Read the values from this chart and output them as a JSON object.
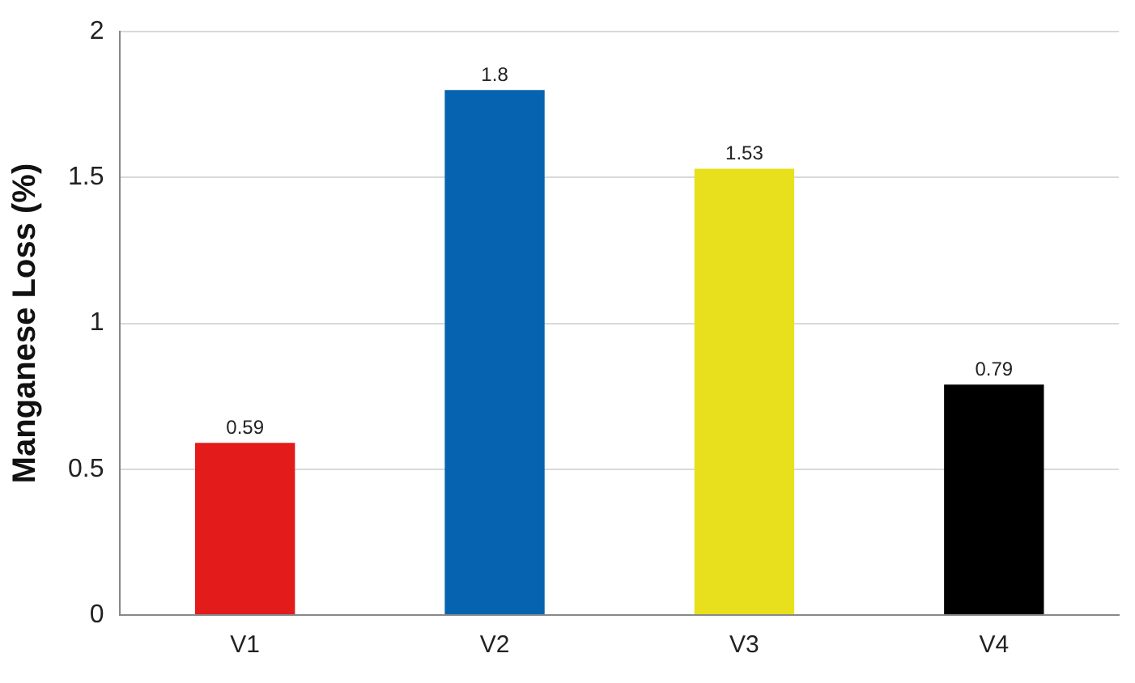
{
  "chart_data": {
    "type": "bar",
    "ylabel": "Manganese Loss (%)",
    "categories": [
      "V1",
      "V2",
      "V3",
      "V4"
    ],
    "values": [
      0.59,
      1.8,
      1.53,
      0.79
    ],
    "colors": [
      "#e31b1b",
      "#0563b0",
      "#e8e01c",
      "#000000"
    ],
    "ylim": [
      0,
      2
    ],
    "yticks": [
      0,
      0.5,
      1,
      1.5,
      2
    ],
    "grid": "y",
    "data_labels": true,
    "legend": false
  }
}
